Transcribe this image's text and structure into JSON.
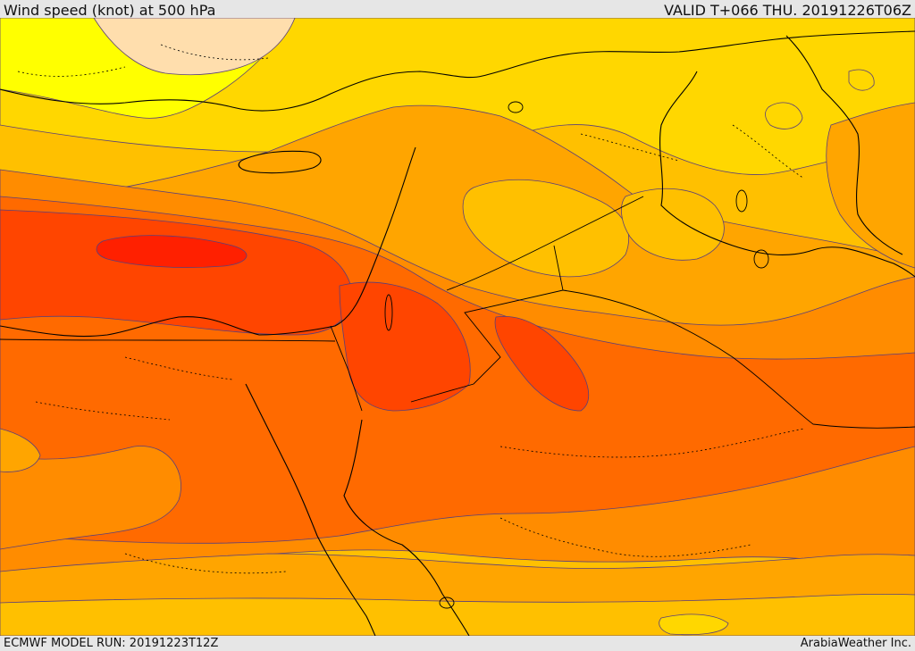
{
  "header": {
    "title": "Wind speed (knot) at 500 hPa",
    "valid": "VALID T+066 THU. 20191226T06Z"
  },
  "footer": {
    "model_run": "ECMWF MODEL RUN: 20191223T12Z",
    "brand": "ArabiaWeather Inc."
  },
  "map": {
    "colors": {
      "lightest": "#ffdead",
      "yellow": "#ffff00",
      "gold": "#ffd700",
      "amber": "#ffc000",
      "orange_light": "#ffa500",
      "orange": "#ff8c00",
      "dark_orange": "#ff6a00",
      "red_orange": "#ff4500",
      "red": "#ff2000",
      "contour": "#5a3f7a",
      "border": "#000000"
    }
  }
}
